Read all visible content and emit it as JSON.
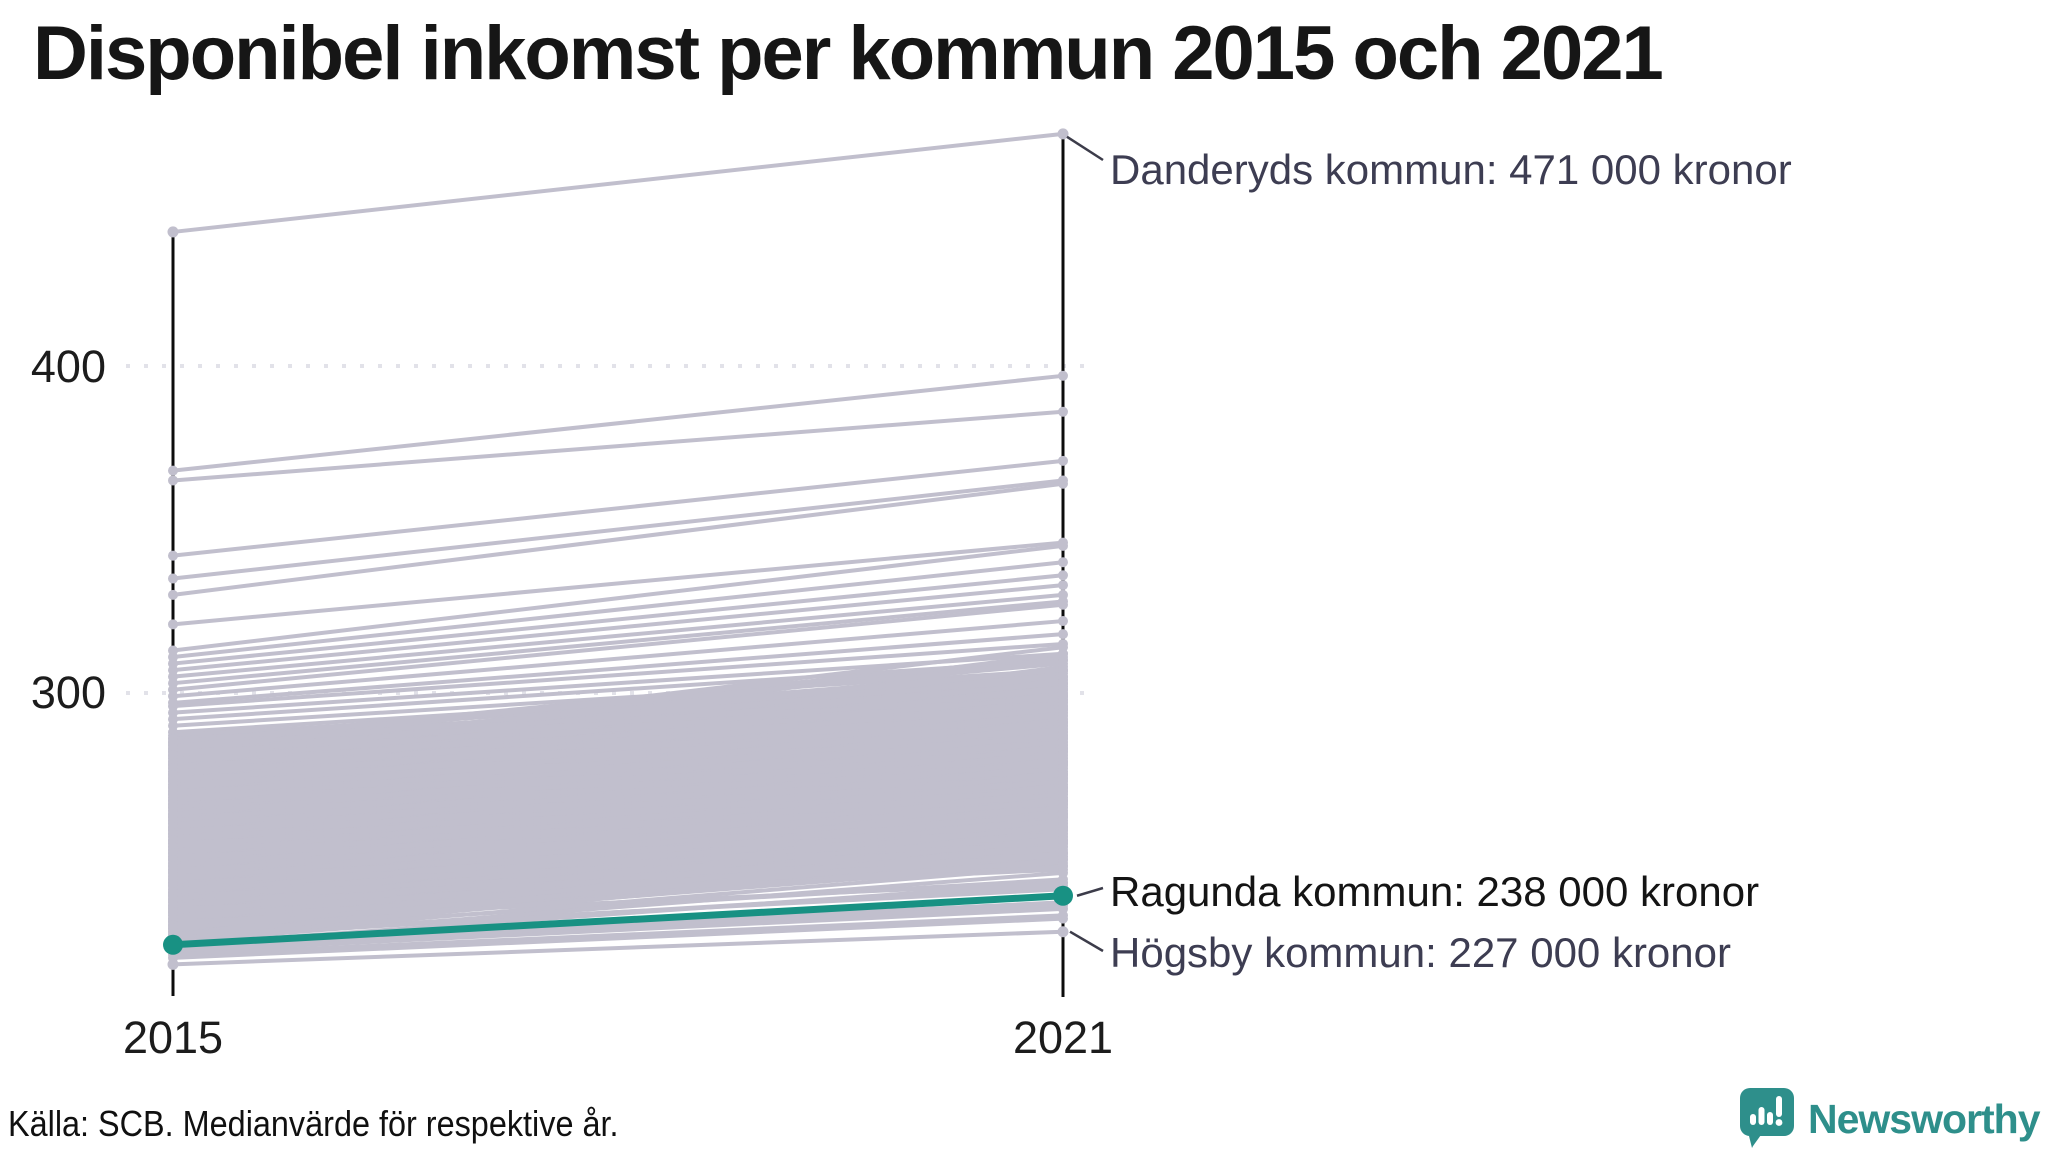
{
  "chart_data": {
    "type": "line",
    "subtype": "slopegraph",
    "title": "Disponibel inkomst per kommun 2015 och 2021",
    "x_categories": [
      "2015",
      "2021"
    ],
    "y_ticks": [
      "400",
      "300"
    ],
    "y_tick_values": [
      400,
      300
    ],
    "y_unit_implied": "tusen kronor",
    "grid": "dotted horizontal at 300 and 400",
    "legend_position": "none",
    "highlight_series": {
      "name": "Ragunda kommun",
      "values": [
        223,
        238
      ],
      "label": "Ragunda kommun: 238 000 kronor"
    },
    "annotated_series": [
      {
        "key": "danderyd",
        "name": "Danderyds kommun",
        "values": [
          441,
          471
        ],
        "label": "Danderyds kommun: 471 000 kronor"
      },
      {
        "key": "hogsby",
        "name": "Högsby kommun",
        "values": [
          217,
          227
        ],
        "label": "Högsby kommun: 227 000 kronor"
      }
    ],
    "background_pairs": [
      [
        368,
        397
      ],
      [
        365,
        386
      ],
      [
        342,
        371
      ],
      [
        335,
        365
      ],
      [
        330,
        364
      ],
      [
        321,
        346
      ],
      [
        313,
        345
      ],
      [
        311,
        340
      ],
      [
        309,
        336
      ],
      [
        307,
        333
      ],
      [
        305,
        330
      ],
      [
        303,
        328
      ],
      [
        301,
        327
      ],
      [
        299,
        322
      ],
      [
        297,
        318
      ],
      [
        296,
        315
      ],
      [
        294,
        312
      ],
      [
        292,
        310
      ],
      [
        290,
        307
      ],
      [
        288,
        305
      ],
      [
        287,
        303
      ],
      [
        286,
        301
      ],
      [
        285,
        307
      ],
      [
        284,
        305
      ],
      [
        283,
        304
      ],
      [
        282,
        303
      ],
      [
        281,
        302
      ],
      [
        280,
        301
      ],
      [
        279,
        300
      ],
      [
        278,
        299
      ],
      [
        277,
        298
      ],
      [
        276,
        297
      ],
      [
        275,
        296
      ],
      [
        274,
        295
      ],
      [
        273,
        294
      ],
      [
        272,
        293
      ],
      [
        271,
        292
      ],
      [
        270,
        291
      ],
      [
        269,
        290
      ],
      [
        268,
        289
      ],
      [
        267,
        288
      ],
      [
        266,
        287
      ],
      [
        265,
        286
      ],
      [
        264,
        285
      ],
      [
        263,
        284
      ],
      [
        262,
        283
      ],
      [
        261,
        282
      ],
      [
        260,
        281
      ],
      [
        259,
        280
      ],
      [
        258,
        279
      ],
      [
        257,
        278
      ],
      [
        256,
        277
      ],
      [
        255,
        276
      ],
      [
        254,
        275
      ],
      [
        253,
        274
      ],
      [
        252,
        273
      ],
      [
        251,
        272
      ],
      [
        250,
        271
      ],
      [
        249,
        270
      ],
      [
        248,
        269
      ],
      [
        247,
        268
      ],
      [
        246,
        267
      ],
      [
        245,
        266
      ],
      [
        244,
        265
      ],
      [
        243,
        264
      ],
      [
        242,
        263
      ],
      [
        241,
        262
      ],
      [
        240,
        261
      ],
      [
        239,
        260
      ],
      [
        238,
        259
      ],
      [
        237,
        258
      ],
      [
        236,
        257
      ],
      [
        235,
        256
      ],
      [
        234,
        255
      ],
      [
        233,
        254
      ],
      [
        232,
        253
      ],
      [
        231,
        252
      ],
      [
        230,
        251
      ],
      [
        229,
        250
      ],
      [
        228,
        249
      ],
      [
        227,
        248
      ],
      [
        284,
        310
      ],
      [
        280,
        306
      ],
      [
        276,
        302
      ],
      [
        272,
        298
      ],
      [
        268,
        294
      ],
      [
        264,
        290
      ],
      [
        260,
        286
      ],
      [
        256,
        282
      ],
      [
        252,
        278
      ],
      [
        248,
        274
      ],
      [
        244,
        270
      ],
      [
        240,
        266
      ],
      [
        236,
        262
      ],
      [
        232,
        258
      ],
      [
        228,
        254
      ],
      [
        285,
        311
      ],
      [
        281,
        307
      ],
      [
        277,
        303
      ],
      [
        273,
        299
      ],
      [
        269,
        295
      ],
      [
        265,
        291
      ],
      [
        261,
        287
      ],
      [
        257,
        283
      ],
      [
        253,
        279
      ],
      [
        249,
        275
      ],
      [
        245,
        271
      ],
      [
        241,
        267
      ],
      [
        237,
        263
      ],
      [
        233,
        259
      ],
      [
        229,
        255
      ],
      [
        283,
        299
      ],
      [
        279,
        295
      ],
      [
        275,
        291
      ],
      [
        271,
        287
      ],
      [
        267,
        283
      ],
      [
        263,
        279
      ],
      [
        259,
        275
      ],
      [
        255,
        271
      ],
      [
        251,
        267
      ],
      [
        247,
        263
      ],
      [
        243,
        259
      ],
      [
        239,
        255
      ],
      [
        235,
        251
      ],
      [
        231,
        247
      ],
      [
        227,
        243
      ],
      [
        225,
        241
      ],
      [
        282,
        314
      ],
      [
        278,
        312
      ],
      [
        274,
        308
      ],
      [
        270,
        304
      ],
      [
        266,
        300
      ],
      [
        262,
        296
      ],
      [
        258,
        292
      ],
      [
        254,
        288
      ],
      [
        250,
        284
      ],
      [
        246,
        280
      ],
      [
        242,
        276
      ],
      [
        238,
        272
      ],
      [
        234,
        268
      ],
      [
        230,
        264
      ],
      [
        226,
        260
      ],
      [
        224,
        256
      ],
      [
        286,
        298
      ],
      [
        282,
        296
      ],
      [
        278,
        290
      ],
      [
        274,
        286
      ],
      [
        270,
        282
      ],
      [
        266,
        278
      ],
      [
        262,
        274
      ],
      [
        258,
        270
      ],
      [
        254,
        266
      ],
      [
        250,
        262
      ],
      [
        246,
        258
      ],
      [
        242,
        254
      ],
      [
        238,
        250
      ],
      [
        234,
        246
      ],
      [
        230,
        242
      ],
      [
        226,
        240
      ],
      [
        223,
        236
      ],
      [
        285,
        309
      ],
      [
        283,
        307
      ],
      [
        281,
        305
      ],
      [
        279,
        303
      ],
      [
        277,
        301
      ],
      [
        275,
        299
      ],
      [
        273,
        297
      ],
      [
        271,
        295
      ],
      [
        269,
        293
      ],
      [
        267,
        291
      ],
      [
        265,
        289
      ],
      [
        263,
        287
      ],
      [
        261,
        285
      ],
      [
        259,
        283
      ],
      [
        257,
        281
      ],
      [
        255,
        279
      ],
      [
        253,
        277
      ],
      [
        251,
        275
      ],
      [
        249,
        273
      ],
      [
        247,
        271
      ],
      [
        245,
        269
      ],
      [
        243,
        267
      ],
      [
        241,
        265
      ],
      [
        239,
        263
      ],
      [
        237,
        261
      ],
      [
        235,
        259
      ],
      [
        233,
        257
      ],
      [
        231,
        255
      ],
      [
        229,
        253
      ],
      [
        228,
        251
      ],
      [
        226,
        249
      ],
      [
        225,
        247
      ],
      [
        224,
        245
      ],
      [
        223,
        242
      ],
      [
        222,
        238
      ],
      [
        222,
        235
      ],
      [
        221,
        234
      ],
      [
        220,
        232
      ],
      [
        219,
        231
      ]
    ]
  },
  "footer": {
    "source": "Källa: SCB. Medianvärde för respektive år."
  },
  "branding": {
    "name": "Newsworthy"
  },
  "colors": {
    "highlight_teal": "#189183",
    "line_gray": "#c1bfcd",
    "dense_gray": "#bdbbc9",
    "axis_black": "#0c0c0c",
    "gridline_gray": "#e2e2e9",
    "label_dark_slate": "#3d3d52",
    "label_black": "#141414",
    "brand_teal": "#2e8f8b",
    "connector_gray": "#3c3c4a"
  }
}
